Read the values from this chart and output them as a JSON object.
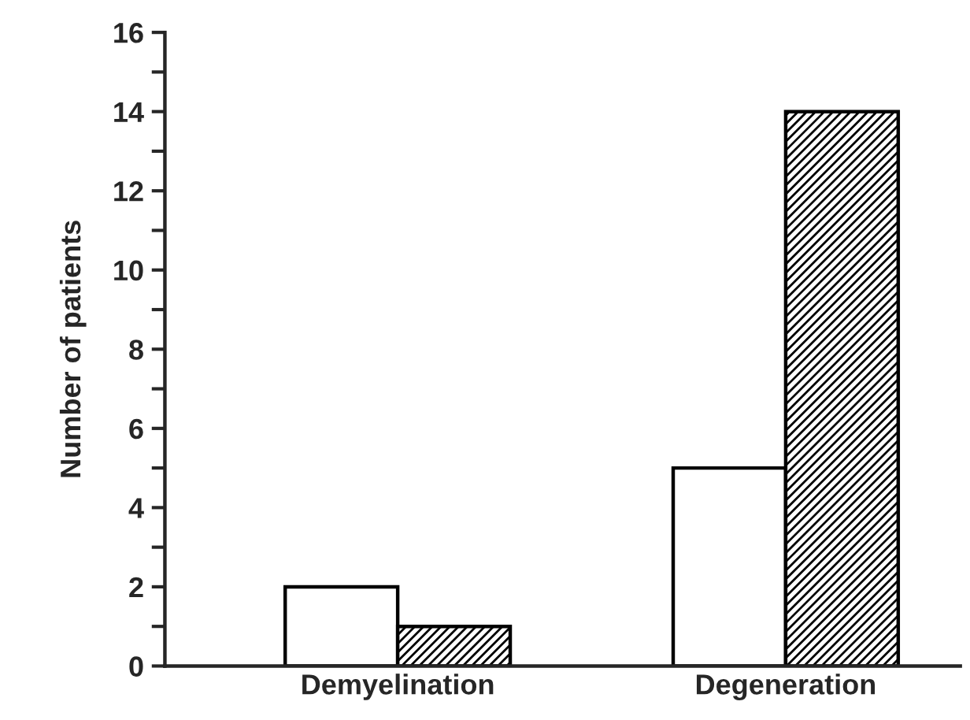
{
  "chart_data": {
    "type": "bar",
    "ylabel": "Number of patients",
    "categories": [
      "Demyelination",
      "Degeneration"
    ],
    "series": [
      {
        "color": "#ffffff",
        "values": [
          2,
          5
        ]
      },
      {
        "color": "#000000",
        "values": [
          1,
          14
        ]
      }
    ],
    "ylim": [
      0,
      16
    ],
    "yticks": [
      0,
      {
        "value": 1,
        "label": null
      },
      2,
      {
        "value": 3,
        "label": null
      },
      4,
      {
        "value": 5,
        "label": null
      },
      6,
      {
        "value": 7,
        "label": null
      },
      8,
      {
        "value": 9,
        "label": null
      },
      10,
      {
        "value": 11,
        "label": null
      },
      12,
      {
        "value": 13,
        "label": null
      },
      14,
      {
        "value": 15,
        "label": null
      },
      16
    ],
    "grid": false,
    "legend": false
  }
}
